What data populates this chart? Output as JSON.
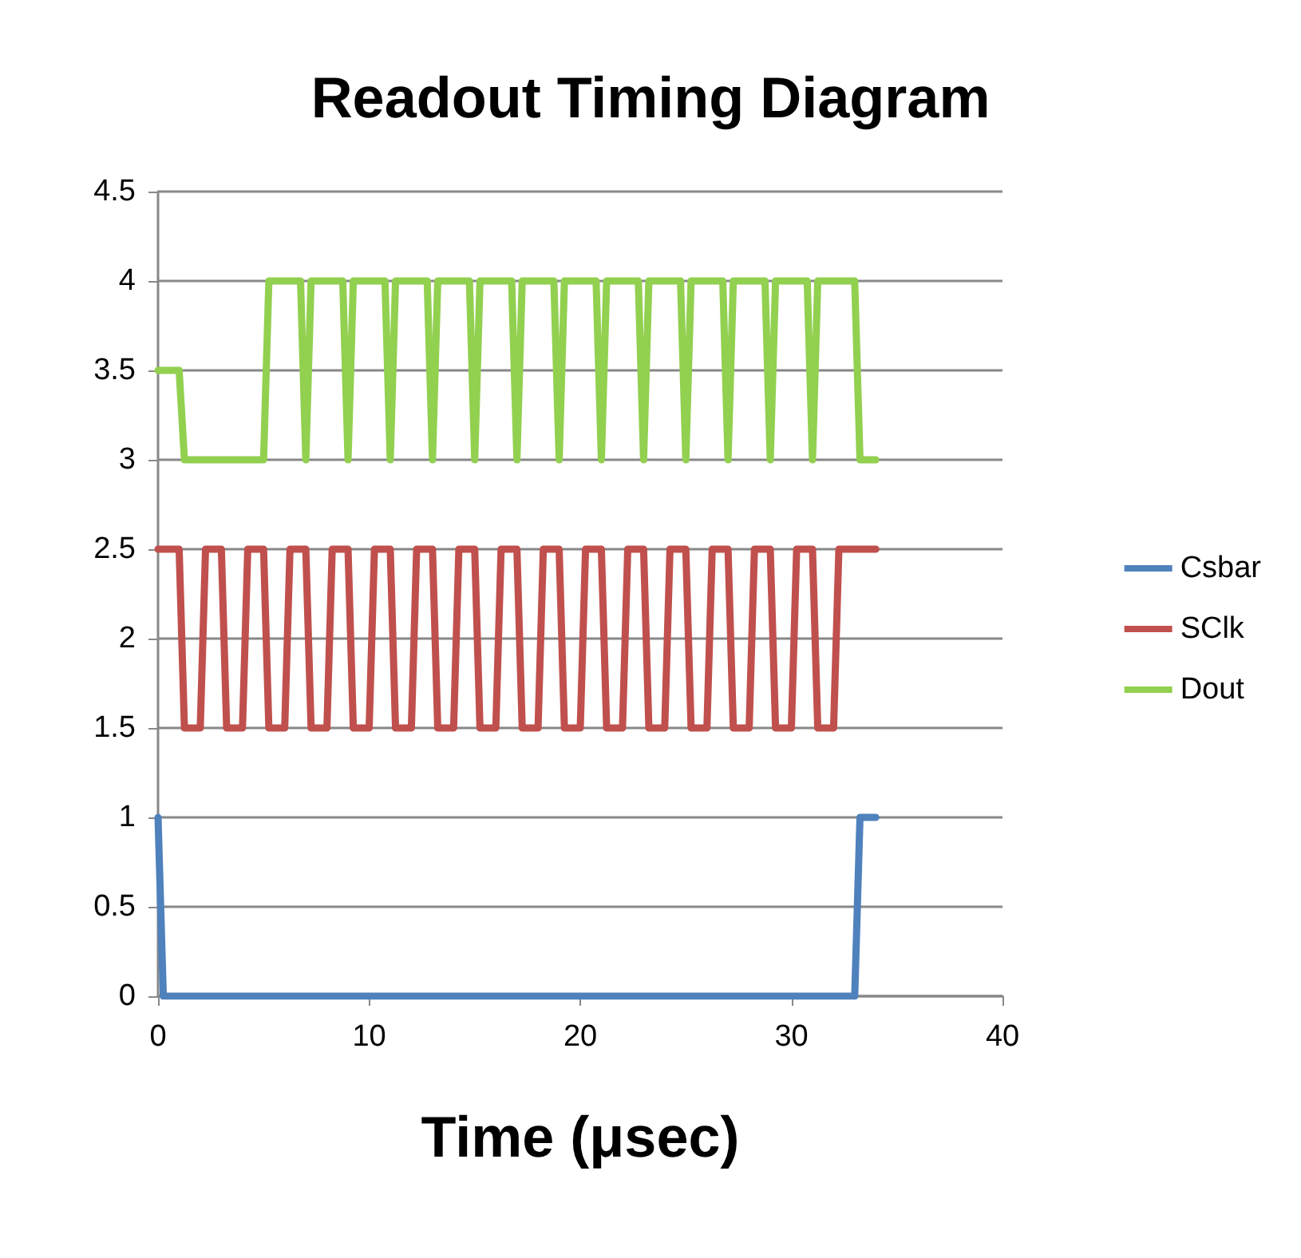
{
  "chart_data": {
    "type": "line",
    "title": "Readout Timing Diagram",
    "xlabel": "Time (μsec)",
    "xlim": [
      0,
      40
    ],
    "xticks": [
      0,
      10,
      20,
      30,
      40
    ],
    "ylim": [
      0,
      4.5
    ],
    "yticks": [
      0,
      0.5,
      1,
      1.5,
      2,
      2.5,
      3,
      3.5,
      4,
      4.5
    ],
    "grid": "y",
    "legend": "right",
    "marker": "none",
    "line_style": "solid",
    "series": [
      {
        "name": "Csbar",
        "color": "#4f81bd",
        "x": [
          0,
          0.25,
          33,
          33.25,
          34
        ],
        "values": [
          1,
          0,
          0,
          1,
          1
        ]
      },
      {
        "name": "SClk",
        "color": "#c0504d",
        "x": [
          0,
          1,
          1.25,
          2,
          2.25,
          3,
          3.25,
          4,
          4.25,
          5,
          5.25,
          6,
          6.25,
          7,
          7.25,
          8,
          8.25,
          9,
          9.25,
          10,
          10.25,
          11,
          11.25,
          12,
          12.25,
          13,
          13.25,
          14,
          14.25,
          15,
          15.25,
          16,
          16.25,
          17,
          17.25,
          18,
          18.25,
          19,
          19.25,
          20,
          20.25,
          21,
          21.25,
          22,
          22.25,
          23,
          23.25,
          24,
          24.25,
          25,
          25.25,
          26,
          26.25,
          27,
          27.25,
          28,
          28.25,
          29,
          29.25,
          30,
          30.25,
          31,
          31.25,
          32,
          32.25,
          34
        ],
        "values": [
          2.5,
          2.5,
          1.5,
          1.5,
          2.5,
          2.5,
          1.5,
          1.5,
          2.5,
          2.5,
          1.5,
          1.5,
          2.5,
          2.5,
          1.5,
          1.5,
          2.5,
          2.5,
          1.5,
          1.5,
          2.5,
          2.5,
          1.5,
          1.5,
          2.5,
          2.5,
          1.5,
          1.5,
          2.5,
          2.5,
          1.5,
          1.5,
          2.5,
          2.5,
          1.5,
          1.5,
          2.5,
          2.5,
          1.5,
          1.5,
          2.5,
          2.5,
          1.5,
          1.5,
          2.5,
          2.5,
          1.5,
          1.5,
          2.5,
          2.5,
          1.5,
          1.5,
          2.5,
          2.5,
          1.5,
          1.5,
          2.5,
          2.5,
          1.5,
          1.5,
          2.5,
          2.5,
          1.5,
          1.5,
          2.5,
          2.5
        ]
      },
      {
        "name": "Dout",
        "color": "#92d050",
        "x": [
          0,
          1,
          1.25,
          5,
          5.25,
          6.75,
          7,
          7.25,
          8.75,
          9,
          9.25,
          10.75,
          11,
          11.25,
          12.75,
          13,
          13.25,
          14.75,
          15,
          15.25,
          16.75,
          17,
          17.25,
          18.75,
          19,
          19.25,
          20.75,
          21,
          21.25,
          22.75,
          23,
          23.25,
          24.75,
          25,
          25.25,
          26.75,
          27,
          27.25,
          28.75,
          29,
          29.25,
          30.75,
          31,
          31.25,
          33,
          33.25,
          34
        ],
        "values": [
          3.5,
          3.5,
          3,
          3,
          4,
          4,
          3,
          4,
          4,
          3,
          4,
          4,
          3,
          4,
          4,
          3,
          4,
          4,
          3,
          4,
          4,
          3,
          4,
          4,
          3,
          4,
          4,
          3,
          4,
          4,
          3,
          4,
          4,
          3,
          4,
          4,
          3,
          4,
          4,
          3,
          4,
          4,
          3,
          4,
          4,
          3,
          3
        ]
      }
    ]
  }
}
